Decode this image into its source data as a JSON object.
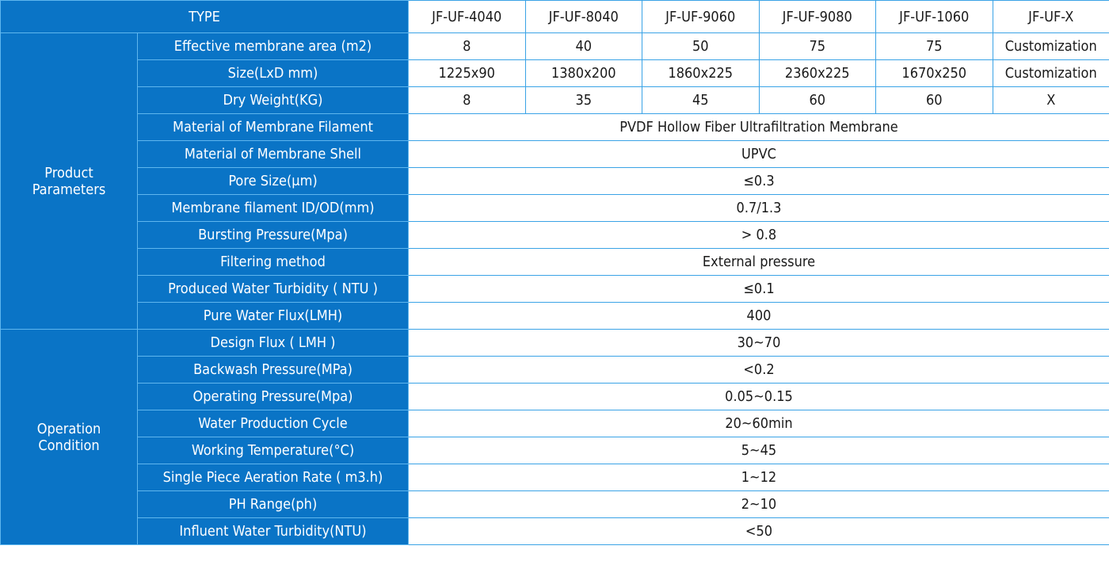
{
  "table": {
    "header": {
      "label": "TYPE",
      "models": [
        "JF-UF-4040",
        "JF-UF-8040",
        "JF-UF-9060",
        "JF-UF-9080",
        "JF-UF-1060",
        "JF-UF-X"
      ]
    },
    "groups": [
      {
        "name_lines": [
          "Product",
          "Parameters"
        ],
        "rows": [
          {
            "label": "Effective membrane area (m2)",
            "values": [
              "8",
              "40",
              "50",
              "75",
              "75",
              "Customization"
            ]
          },
          {
            "label": "Size(LxD mm)",
            "values": [
              "1225x90",
              "1380x200",
              "1860x225",
              "2360x225",
              "1670x250",
              "Customization"
            ]
          },
          {
            "label": "Dry Weight(KG)",
            "values": [
              "8",
              "35",
              "45",
              "60",
              "60",
              "X"
            ]
          },
          {
            "label": "Material of Membrane Filament",
            "value": "PVDF Hollow Fiber Ultrafiltration Membrane"
          },
          {
            "label": "Material of Membrane Shell",
            "value": "UPVC"
          },
          {
            "label": "Pore Size(μm)",
            "value": "≤0.3"
          },
          {
            "label": "Membrane filament ID/OD(mm)",
            "value": "0.7/1.3"
          },
          {
            "label": "Bursting Pressure(Mpa)",
            "value": "> 0.8"
          },
          {
            "label": "Filtering method",
            "value": "External pressure"
          },
          {
            "label": "Produced Water Turbidity ( NTU )",
            "value": "≤0.1"
          },
          {
            "label": "Pure Water Flux(LMH)",
            "value": "400"
          }
        ]
      },
      {
        "name_lines": [
          "Operation",
          "Condition"
        ],
        "rows": [
          {
            "label": "Design Flux ( LMH )",
            "value": "30~70"
          },
          {
            "label": "Backwash Pressure(MPa)",
            "value": "<0.2"
          },
          {
            "label": "Operating Pressure(Mpa)",
            "value": "0.05~0.15"
          },
          {
            "label": "Water Production Cycle",
            "value": "20~60min"
          },
          {
            "label": "Working Temperature(°C)",
            "value": "5~45"
          },
          {
            "label": "Single Piece Aeration Rate ( m3.h)",
            "value": "1~12"
          },
          {
            "label": "PH Range(ph)",
            "value": "2~10"
          },
          {
            "label": "Influent Water Turbidity(NTU)",
            "value": "<50"
          }
        ]
      }
    ]
  }
}
